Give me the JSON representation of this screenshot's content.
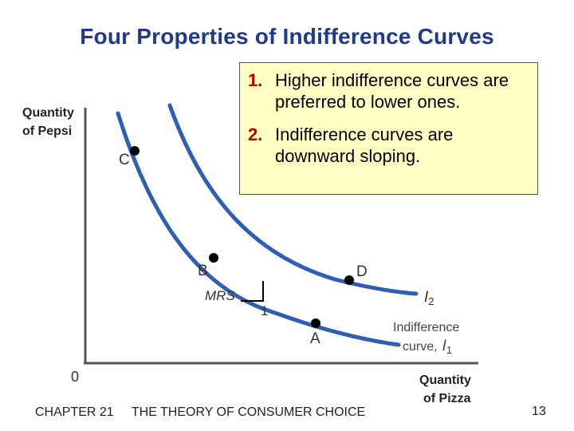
{
  "title": "Four Properties of Indifference Curves",
  "properties": [
    {
      "number": "1.",
      "text": "Higher indifference curves are preferred to lower ones."
    },
    {
      "number": "2.",
      "text": "Indifference curves are downward sloping."
    }
  ],
  "graph": {
    "y_axis_label_line1": "Quantity",
    "y_axis_label_line2": "of Pepsi",
    "x_axis_label_line1": "Quantity",
    "x_axis_label_line2": "of Pizza",
    "origin_label": "0",
    "curve_i2_letter": "I",
    "curve_i2_subscript": "2",
    "curve_i1_text": "Indifference",
    "curve_i1_text2": "curve,",
    "curve_i1_letter": "I",
    "curve_i1_subscript": "1",
    "mrs_label": "MRS",
    "mrs_unit": "1",
    "points": {
      "a": "A",
      "b": "B",
      "c": "C",
      "d": "D"
    },
    "colors": {
      "curve": "#2f5fb3",
      "axis": "#555555",
      "point": "#000000"
    }
  },
  "footer": {
    "chapter": "CHAPTER 21",
    "chapter_title": "THE THEORY OF CONSUMER CHOICE",
    "page": "13"
  }
}
